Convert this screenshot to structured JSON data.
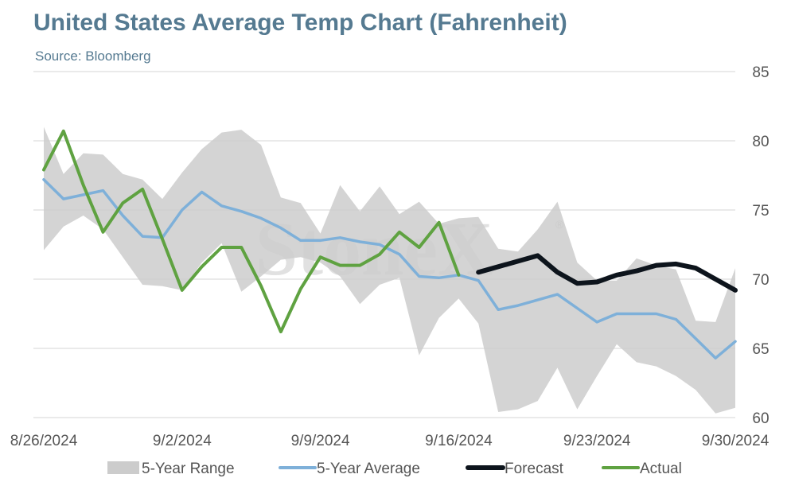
{
  "chart_data": {
    "type": "line",
    "title": "United States Average Temp Chart (Fahrenheit)",
    "subtitle": "Source: Bloomberg",
    "watermark": "StoneX",
    "watermark_mark": "®",
    "x_start": "2024-08-26",
    "x_end": "2024-09-30",
    "x_ticks": [
      "2024-08-26",
      "2024-09-02",
      "2024-09-09",
      "2024-09-16",
      "2024-09-23",
      "2024-09-30"
    ],
    "x_tick_labels": [
      "8/26/2024",
      "9/2/2024",
      "9/9/2024",
      "9/16/2024",
      "9/23/2024",
      "9/30/2024"
    ],
    "ylim": [
      60,
      85
    ],
    "y_ticks": [
      60,
      65,
      70,
      75,
      80,
      85
    ],
    "y_axis_side": "right",
    "grid": true,
    "legend_position": "bottom",
    "range": {
      "name": "5-Year Range",
      "color": "#cccccc",
      "x": [
        "2024-08-26",
        "2024-08-27",
        "2024-08-28",
        "2024-08-29",
        "2024-08-30",
        "2024-08-31",
        "2024-09-01",
        "2024-09-02",
        "2024-09-03",
        "2024-09-04",
        "2024-09-05",
        "2024-09-06",
        "2024-09-07",
        "2024-09-08",
        "2024-09-09",
        "2024-09-10",
        "2024-09-11",
        "2024-09-12",
        "2024-09-13",
        "2024-09-14",
        "2024-09-15",
        "2024-09-16",
        "2024-09-17",
        "2024-09-18",
        "2024-09-19",
        "2024-09-20",
        "2024-09-21",
        "2024-09-22",
        "2024-09-23",
        "2024-09-24",
        "2024-09-25",
        "2024-09-26",
        "2024-09-27",
        "2024-09-28",
        "2024-09-29",
        "2024-09-30"
      ],
      "low": [
        72.1,
        73.8,
        74.6,
        73.6,
        71.6,
        69.6,
        69.5,
        69.2,
        71.2,
        72.6,
        69.1,
        70.2,
        71.4,
        71.6,
        71.2,
        70.2,
        68.2,
        69.6,
        70.1,
        64.5,
        67.2,
        68.6,
        66.8,
        60.4,
        60.6,
        61.2,
        63.6,
        60.6,
        63.0,
        65.3,
        64.0,
        63.7,
        63.0,
        62.0,
        60.3,
        60.7
      ],
      "high": [
        81.0,
        77.6,
        79.1,
        79.0,
        77.6,
        77.2,
        75.8,
        77.7,
        79.4,
        80.6,
        80.8,
        79.7,
        75.9,
        75.5,
        73.3,
        76.8,
        74.9,
        76.7,
        74.7,
        75.6,
        74.0,
        74.4,
        74.5,
        72.2,
        72.0,
        73.6,
        75.6,
        71.2,
        69.9,
        69.9,
        71.5,
        71.0,
        70.7,
        67.0,
        66.9,
        70.8
      ]
    },
    "series": [
      {
        "name": "5-Year Average",
        "color": "#7eb0d9",
        "x": [
          "2024-08-26",
          "2024-08-27",
          "2024-08-28",
          "2024-08-29",
          "2024-08-30",
          "2024-08-31",
          "2024-09-01",
          "2024-09-02",
          "2024-09-03",
          "2024-09-04",
          "2024-09-05",
          "2024-09-06",
          "2024-09-07",
          "2024-09-08",
          "2024-09-09",
          "2024-09-10",
          "2024-09-11",
          "2024-09-12",
          "2024-09-13",
          "2024-09-14",
          "2024-09-15",
          "2024-09-16",
          "2024-09-17",
          "2024-09-18",
          "2024-09-19",
          "2024-09-20",
          "2024-09-21",
          "2024-09-22",
          "2024-09-23",
          "2024-09-24",
          "2024-09-25",
          "2024-09-26",
          "2024-09-27",
          "2024-09-28",
          "2024-09-29",
          "2024-09-30"
        ],
        "values": [
          77.2,
          75.8,
          76.1,
          76.4,
          74.6,
          73.1,
          73.0,
          75.0,
          76.3,
          75.3,
          74.9,
          74.4,
          73.7,
          72.8,
          72.8,
          73.0,
          72.7,
          72.5,
          71.8,
          70.2,
          70.1,
          70.3,
          69.9,
          67.8,
          68.1,
          68.5,
          68.9,
          67.9,
          66.9,
          67.5,
          67.5,
          67.5,
          67.1,
          65.7,
          64.3,
          65.5
        ]
      },
      {
        "name": "Forecast",
        "color": "#0d141c",
        "x": [
          "2024-09-17",
          "2024-09-18",
          "2024-09-19",
          "2024-09-20",
          "2024-09-21",
          "2024-09-22",
          "2024-09-23",
          "2024-09-24",
          "2024-09-25",
          "2024-09-26",
          "2024-09-27",
          "2024-09-28",
          "2024-09-29",
          "2024-09-30"
        ],
        "values": [
          70.5,
          70.9,
          71.3,
          71.7,
          70.5,
          69.7,
          69.8,
          70.3,
          70.6,
          71.0,
          71.1,
          70.8,
          70.0,
          69.2
        ]
      },
      {
        "name": "Actual",
        "color": "#5fa241",
        "x": [
          "2024-08-26",
          "2024-08-27",
          "2024-08-28",
          "2024-08-29",
          "2024-08-30",
          "2024-08-31",
          "2024-09-01",
          "2024-09-02",
          "2024-09-03",
          "2024-09-04",
          "2024-09-05",
          "2024-09-06",
          "2024-09-07",
          "2024-09-08",
          "2024-09-09",
          "2024-09-10",
          "2024-09-11",
          "2024-09-12",
          "2024-09-13",
          "2024-09-14",
          "2024-09-15",
          "2024-09-16"
        ],
        "values": [
          77.9,
          80.7,
          76.8,
          73.4,
          75.5,
          76.5,
          72.9,
          69.2,
          70.9,
          72.3,
          72.3,
          69.5,
          66.2,
          69.3,
          71.6,
          71.0,
          71.0,
          71.8,
          73.4,
          72.3,
          74.1,
          70.3
        ]
      }
    ],
    "legend": [
      "5-Year Range",
      "5-Year Average",
      "Forecast",
      "Actual"
    ]
  }
}
